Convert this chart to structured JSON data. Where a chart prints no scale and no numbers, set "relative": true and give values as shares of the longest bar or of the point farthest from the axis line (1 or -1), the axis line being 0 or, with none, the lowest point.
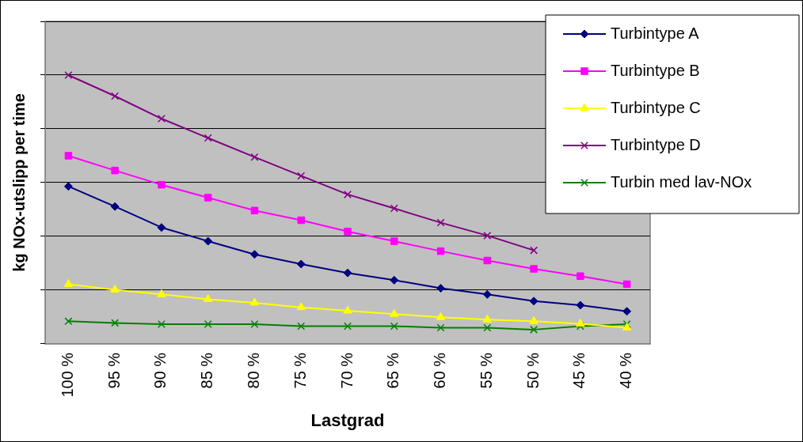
{
  "chart_data": {
    "type": "line",
    "xlabel": "Lastgrad",
    "ylabel": "kg NOx-utslipp per time",
    "relative": true,
    "grid": "y",
    "legend": "top right",
    "categories": [
      "100 %",
      "95 %",
      "90 %",
      "85 %",
      "80 %",
      "75 %",
      "70 %",
      "65 %",
      "60 %",
      "55 %",
      "50 %",
      "45 %",
      "40 %"
    ],
    "series": [
      {
        "name": "Turbintype A",
        "color": "#000080",
        "marker": "diamond",
        "values": [
          0.586,
          0.511,
          0.433,
          0.382,
          0.333,
          0.297,
          0.264,
          0.237,
          0.207,
          0.184,
          0.159,
          0.144,
          0.121
        ]
      },
      {
        "name": "Turbintype B",
        "color": "#ff00ff",
        "marker": "square",
        "values": [
          0.7,
          0.645,
          0.592,
          0.544,
          0.496,
          0.46,
          0.418,
          0.382,
          0.345,
          0.31,
          0.279,
          0.252,
          0.222
        ]
      },
      {
        "name": "Turbintype C",
        "color": "#ffff00",
        "marker": "triangle",
        "values": [
          0.222,
          0.201,
          0.184,
          0.166,
          0.153,
          0.136,
          0.123,
          0.111,
          0.099,
          0.09,
          0.084,
          0.075,
          0.06
        ]
      },
      {
        "name": "Turbintype D",
        "color": "#800080",
        "marker": "cross",
        "values": [
          1,
          0.922,
          0.838,
          0.766,
          0.695,
          0.625,
          0.556,
          0.504,
          0.451,
          0.403,
          0.348,
          null,
          null
        ]
      },
      {
        "name": "Turbin med lav-NOx",
        "color": "#008000",
        "marker": "cross",
        "values": [
          0.084,
          0.078,
          0.073,
          0.073,
          0.073,
          0.066,
          0.066,
          0.066,
          0.06,
          0.06,
          0.053,
          0.066,
          0.073
        ]
      }
    ]
  }
}
